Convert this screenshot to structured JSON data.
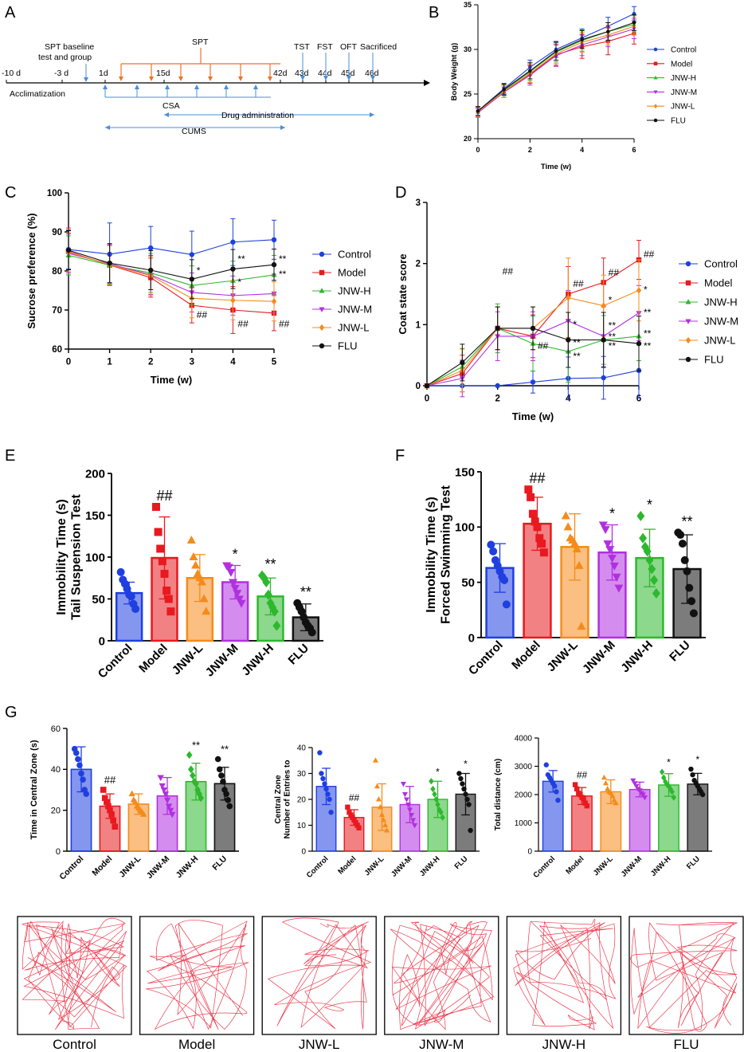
{
  "colors": {
    "Control": "#1f3fe0",
    "Model": "#e8191f",
    "JNW-H": "#2db82d",
    "JNW-M": "#b030e0",
    "JNW-L": "#f58b1a",
    "FLU": "#111111",
    "timeline": "#e8742c",
    "timeline_blue": "#4a8fd8"
  },
  "panels": {
    "A": {
      "letter": "A",
      "days": [
        "-10 d",
        "-3 d",
        "1d",
        "15d",
        "42d",
        "43d",
        "44d",
        "45d",
        "46d"
      ],
      "labels": {
        "acclimatization": "Acclimatization",
        "spt_baseline": "SPT baseline",
        "test_group": "test and group",
        "spt": "SPT",
        "tst": "TST",
        "fst": "FST",
        "oft": "OFT",
        "sacrificed": "Sacrificed",
        "csa": "CSA",
        "drug": "Drug administration",
        "cums": "CUMS"
      }
    },
    "B": {
      "letter": "B"
    },
    "C": {
      "letter": "C"
    },
    "D": {
      "letter": "D"
    },
    "E": {
      "letter": "E"
    },
    "F": {
      "letter": "F"
    },
    "G": {
      "letter": "G"
    }
  },
  "significance": {
    "hash2": "##",
    "star1": "*",
    "star2": "**"
  },
  "chart_data": [
    {
      "id": "B",
      "type": "line",
      "title": "",
      "xlabel": "Time (w)",
      "ylabel": "Body Weight (g)",
      "xlim": [
        0,
        6
      ],
      "ylim": [
        20,
        35
      ],
      "xticks": [
        0,
        2,
        4,
        6
      ],
      "yticks": [
        20,
        25,
        30,
        35
      ],
      "x": [
        0,
        1,
        2,
        3,
        4,
        5,
        6
      ],
      "legend_position": "right",
      "series": [
        {
          "name": "Control",
          "values": [
            23.1,
            25.6,
            28.0,
            30.0,
            31.3,
            32.6,
            34.0
          ],
          "error": [
            0.5,
            0.6,
            0.8,
            0.9,
            1.0,
            1.0,
            0.8
          ]
        },
        {
          "name": "Model",
          "values": [
            23.0,
            25.3,
            27.2,
            29.4,
            30.3,
            30.9,
            31.8
          ],
          "error": [
            0.5,
            0.7,
            1.0,
            1.2,
            1.3,
            1.5,
            1.2
          ]
        },
        {
          "name": "JNW-H",
          "values": [
            23.0,
            25.4,
            27.5,
            29.7,
            31.0,
            32.0,
            32.8
          ],
          "error": [
            0.5,
            0.6,
            1.0,
            1.1,
            1.2,
            1.0,
            1.0
          ]
        },
        {
          "name": "JNW-M",
          "values": [
            22.9,
            25.2,
            27.1,
            29.3,
            30.5,
            31.4,
            32.3
          ],
          "error": [
            0.5,
            0.6,
            1.1,
            1.2,
            1.2,
            1.1,
            1.1
          ]
        },
        {
          "name": "JNW-L",
          "values": [
            23.0,
            25.3,
            27.3,
            29.5,
            30.8,
            31.6,
            32.6
          ],
          "error": [
            0.5,
            0.7,
            1.0,
            1.1,
            1.1,
            1.1,
            1.0
          ]
        },
        {
          "name": "FLU",
          "values": [
            23.1,
            25.5,
            27.6,
            29.8,
            31.1,
            32.0,
            33.0
          ],
          "error": [
            0.5,
            0.6,
            0.9,
            1.0,
            1.0,
            1.0,
            0.9
          ]
        }
      ]
    },
    {
      "id": "C",
      "type": "line",
      "title": "",
      "xlabel": "Time (w)",
      "ylabel": "Sucrose preference (%)",
      "xlim": [
        0,
        5
      ],
      "ylim": [
        60,
        100
      ],
      "xticks": [
        0,
        1,
        2,
        3,
        4,
        5
      ],
      "yticks": [
        60,
        70,
        80,
        90,
        100
      ],
      "x": [
        0,
        1,
        2,
        3,
        4,
        5
      ],
      "legend_position": "right",
      "series": [
        {
          "name": "Control",
          "values": [
            85.5,
            84.3,
            85.9,
            84.2,
            87.4,
            88.0
          ],
          "error": [
            5,
            8,
            5.5,
            6,
            6,
            5
          ]
        },
        {
          "name": "Model",
          "values": [
            85.0,
            81.5,
            78.3,
            71.2,
            70.0,
            69.2
          ],
          "error": [
            6,
            5,
            5,
            4.5,
            6,
            4.5
          ]
        },
        {
          "name": "JNW-H",
          "values": [
            84.0,
            81.5,
            79.5,
            76.3,
            77.5,
            79.0
          ],
          "error": [
            5,
            5,
            5,
            5,
            5,
            5
          ]
        },
        {
          "name": "JNW-M",
          "values": [
            84.5,
            81.8,
            79.0,
            74.5,
            73.7,
            74.2
          ],
          "error": [
            5,
            5,
            5,
            5,
            5,
            5
          ]
        },
        {
          "name": "JNW-L",
          "values": [
            84.8,
            81.6,
            78.8,
            73.0,
            72.5,
            72.2
          ],
          "error": [
            5,
            5,
            5,
            5,
            5,
            5
          ]
        },
        {
          "name": "FLU",
          "values": [
            85.3,
            82.0,
            80.2,
            77.9,
            80.5,
            81.6
          ],
          "error": [
            5,
            5,
            5,
            5,
            5,
            4
          ]
        }
      ],
      "annotations": [
        {
          "x": 3,
          "y": 68.0,
          "text": "##"
        },
        {
          "x": 4,
          "y": 65.6,
          "text": "##"
        },
        {
          "x": 5,
          "y": 65.6,
          "text": "##"
        },
        {
          "x": 3,
          "y": 79.3,
          "text": "*"
        },
        {
          "x": 4,
          "y": 82.2,
          "text": "**"
        },
        {
          "x": 4,
          "y": 76.3,
          "text": "*"
        },
        {
          "x": 5,
          "y": 82.2,
          "text": "**"
        },
        {
          "x": 5,
          "y": 78.4,
          "text": "**"
        }
      ]
    },
    {
      "id": "D",
      "type": "line",
      "title": "",
      "xlabel": "Time (w)",
      "ylabel": "Coat state score",
      "xlim": [
        0,
        6
      ],
      "ylim": [
        0,
        3
      ],
      "xticks": [
        0,
        2,
        4,
        6
      ],
      "yticks": [
        0,
        1,
        2,
        3
      ],
      "x": [
        0,
        1,
        2,
        3,
        4,
        5,
        6
      ],
      "legend_position": "right",
      "series": [
        {
          "name": "Control",
          "values": [
            0,
            0,
            0,
            0.06,
            0.12,
            0.13,
            0.25
          ],
          "error": [
            0,
            0,
            0,
            0.18,
            0.35,
            0.35,
            0.45
          ]
        },
        {
          "name": "Model",
          "values": [
            0,
            0.2,
            0.94,
            0.81,
            1.5,
            1.69,
            2.06
          ],
          "error": [
            0,
            0.3,
            0.35,
            0.35,
            0.45,
            0.4,
            0.32
          ]
        },
        {
          "name": "JNW-H",
          "values": [
            0,
            0.31,
            0.94,
            0.69,
            0.56,
            0.75,
            0.81
          ],
          "error": [
            0,
            0.3,
            0.4,
            0.45,
            0.5,
            0.4,
            0.4
          ]
        },
        {
          "name": "JNW-M",
          "values": [
            0,
            0.12,
            0.81,
            0.81,
            1.06,
            0.81,
            1.19
          ],
          "error": [
            0,
            0.3,
            0.4,
            0.4,
            0.5,
            0.5,
            0.45
          ]
        },
        {
          "name": "JNW-L",
          "values": [
            0,
            0.25,
            0.94,
            0.94,
            1.44,
            1.31,
            1.56
          ],
          "error": [
            0,
            0.35,
            0.35,
            0.35,
            0.65,
            0.5,
            0.5
          ]
        },
        {
          "name": "FLU",
          "values": [
            0,
            0.38,
            0.94,
            0.94,
            0.75,
            0.75,
            0.69
          ],
          "error": [
            0,
            0.3,
            0.35,
            0.35,
            0.45,
            0.45,
            0.45
          ]
        }
      ],
      "annotations": [
        {
          "x": 2,
          "y": 1.82,
          "text": "##"
        },
        {
          "x": 3,
          "y": 0.6,
          "text": "##"
        },
        {
          "x": 4,
          "y": 1.62,
          "text": "##"
        },
        {
          "x": 5,
          "y": 1.8,
          "text": "##"
        },
        {
          "x": 6,
          "y": 2.1,
          "text": "##"
        },
        {
          "x": 4,
          "y": 0.95,
          "text": "*"
        },
        {
          "x": 4,
          "y": 0.65,
          "text": "**"
        },
        {
          "x": 4,
          "y": 0.43,
          "text": "**"
        },
        {
          "x": 5,
          "y": 1.35,
          "text": "*"
        },
        {
          "x": 5,
          "y": 0.93,
          "text": "**"
        },
        {
          "x": 5,
          "y": 0.75,
          "text": "**"
        },
        {
          "x": 5,
          "y": 0.6,
          "text": "**"
        },
        {
          "x": 6,
          "y": 1.52,
          "text": "*"
        },
        {
          "x": 6,
          "y": 1.15,
          "text": "**"
        },
        {
          "x": 6,
          "y": 0.8,
          "text": "**"
        },
        {
          "x": 6,
          "y": 0.6,
          "text": "**"
        }
      ]
    },
    {
      "id": "E",
      "type": "bar",
      "ylabel": "Tail Suspension Test\nImmobility Time (s)",
      "ylim": [
        0,
        200
      ],
      "yticks": [
        0,
        50,
        100,
        150,
        200
      ],
      "categories": [
        "Control",
        "Model",
        "JNW-L",
        "JNW-M",
        "JNW-H",
        "FLU"
      ],
      "values": [
        57,
        99,
        75,
        70,
        53,
        28
      ],
      "sd": [
        13,
        49,
        28,
        20,
        22,
        16
      ],
      "marks": [
        "",
        "##",
        "",
        "*",
        "**",
        "**"
      ],
      "points": [
        [
          82,
          73,
          68,
          62,
          55,
          53,
          44,
          38
        ],
        [
          160,
          130,
          110,
          95,
          80,
          60,
          50,
          35
        ],
        [
          120,
          100,
          90,
          80,
          75,
          70,
          50,
          35
        ],
        [
          90,
          88,
          82,
          70,
          63,
          57,
          50,
          45
        ],
        [
          78,
          75,
          70,
          55,
          45,
          40,
          35,
          18
        ],
        [
          45,
          40,
          35,
          28,
          22,
          18,
          15,
          10
        ]
      ]
    },
    {
      "id": "F",
      "type": "bar",
      "ylabel": "Forced Swimming Test\nImmobility Time (s)",
      "ylim": [
        0,
        150
      ],
      "yticks": [
        0,
        50,
        100,
        150
      ],
      "categories": [
        "Control",
        "Model",
        "JNW-L",
        "JNW-M",
        "JNW-H",
        "FLU"
      ],
      "values": [
        63,
        103,
        82,
        77,
        72,
        62
      ],
      "sd": [
        22,
        24,
        30,
        25,
        26,
        31
      ],
      "marks": [
        "",
        "##",
        "",
        "*",
        "*",
        "**"
      ],
      "points": [
        [
          84,
          78,
          70,
          65,
          60,
          55,
          52,
          30
        ],
        [
          134,
          127,
          112,
          105,
          100,
          90,
          85,
          77
        ],
        [
          110,
          100,
          90,
          88,
          85,
          80,
          65,
          10
        ],
        [
          102,
          98,
          85,
          80,
          72,
          65,
          55,
          45
        ],
        [
          110,
          90,
          82,
          78,
          70,
          62,
          52,
          40
        ],
        [
          95,
          93,
          85,
          70,
          60,
          45,
          33,
          22
        ]
      ]
    },
    {
      "id": "G1",
      "type": "bar",
      "ylabel": "Time in Central Zone (s)",
      "ylim": [
        0,
        60
      ],
      "yticks": [
        0,
        20,
        40,
        60
      ],
      "categories": [
        "Control",
        "Model",
        "JNW-L",
        "JNW-M",
        "JNW-H",
        "FLU"
      ],
      "values": [
        40,
        22,
        23,
        27,
        34,
        33
      ],
      "sd": [
        11,
        6,
        5,
        9,
        9,
        8
      ],
      "marks": [
        "",
        "##",
        "",
        "",
        "**",
        "**"
      ],
      "points": [
        [
          50,
          48,
          45,
          42,
          38,
          35,
          30,
          28
        ],
        [
          30,
          26,
          24,
          22,
          20,
          18,
          15,
          12
        ],
        [
          28,
          25,
          24,
          22,
          21,
          20,
          19,
          18
        ],
        [
          36,
          32,
          30,
          28,
          25,
          22,
          20,
          18
        ],
        [
          47,
          40,
          37,
          34,
          33,
          30,
          28,
          26
        ],
        [
          45,
          40,
          37,
          34,
          30,
          28,
          25,
          22
        ]
      ]
    },
    {
      "id": "G2",
      "type": "bar",
      "ylabel": "Number of Entries to\nCentral Zone",
      "ylim": [
        0,
        40
      ],
      "yticks": [
        0,
        10,
        20,
        30,
        40
      ],
      "categories": [
        "Control",
        "Model",
        "JNW-L",
        "JNW-M",
        "JNW-H",
        "FLU"
      ],
      "values": [
        25,
        13,
        17,
        18,
        20,
        22
      ],
      "sd": [
        7,
        3,
        9,
        7,
        7,
        8
      ],
      "marks": [
        "",
        "##",
        "",
        "",
        "*",
        "*"
      ],
      "points": [
        [
          38,
          30,
          28,
          26,
          24,
          22,
          20,
          15
        ],
        [
          17,
          15,
          14,
          13,
          12,
          11,
          10,
          9
        ],
        [
          35,
          25,
          20,
          17,
          14,
          12,
          10,
          8
        ],
        [
          26,
          22,
          20,
          18,
          16,
          14,
          12,
          10
        ],
        [
          27,
          24,
          22,
          20,
          18,
          16,
          15,
          13
        ],
        [
          30,
          28,
          26,
          24,
          22,
          20,
          18,
          8
        ]
      ]
    },
    {
      "id": "G3",
      "type": "bar",
      "ylabel": "Total distance (cm)",
      "ylim": [
        0,
        4000
      ],
      "yticks": [
        0,
        1000,
        2000,
        3000,
        4000
      ],
      "categories": [
        "Control",
        "Model",
        "JNW-L",
        "JNW-M",
        "JNW-H",
        "FLU"
      ],
      "values": [
        2470,
        1950,
        2100,
        2180,
        2340,
        2370
      ],
      "sd": [
        380,
        300,
        420,
        260,
        400,
        380
      ],
      "marks": [
        "",
        "##",
        "",
        "",
        "*",
        "*"
      ],
      "points": [
        [
          3050,
          2700,
          2600,
          2500,
          2400,
          2300,
          2100,
          1800
        ],
        [
          2350,
          2200,
          2050,
          2000,
          1900,
          1850,
          1700,
          1600
        ],
        [
          2600,
          2400,
          2200,
          2100,
          2050,
          1950,
          1800,
          1700
        ],
        [
          2500,
          2400,
          2300,
          2200,
          2150,
          2050,
          2000,
          1900
        ],
        [
          2800,
          2600,
          2450,
          2350,
          2300,
          2200,
          2100,
          1900
        ],
        [
          2900,
          2700,
          2500,
          2400,
          2300,
          2200,
          2100,
          2000
        ]
      ]
    }
  ],
  "open_field": {
    "labels": [
      "Control",
      "Model",
      "JNW-L",
      "JNW-M",
      "JNW-H",
      "FLU"
    ]
  }
}
